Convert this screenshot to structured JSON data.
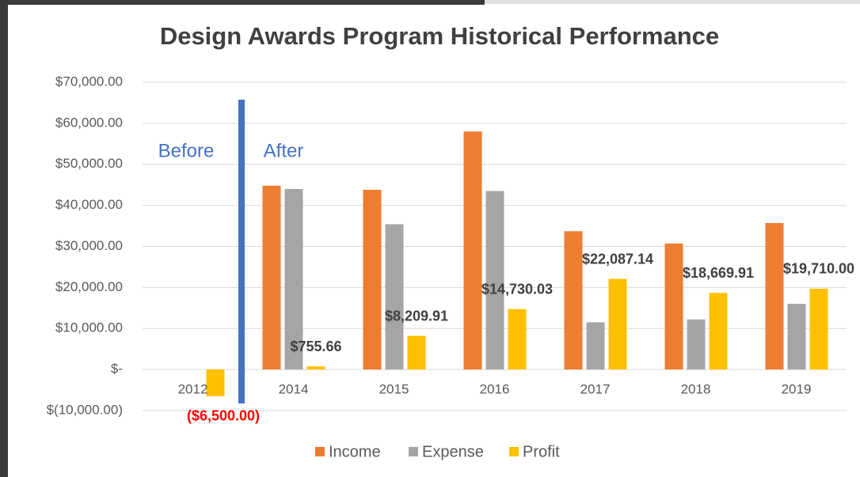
{
  "chart_data": {
    "type": "bar",
    "title": "Design Awards Program Historical Performance",
    "annotations": [
      "Before",
      "After"
    ],
    "categories": [
      "2012",
      "2014",
      "2015",
      "2016",
      "2017",
      "2018",
      "2019"
    ],
    "series": [
      {
        "name": "Income",
        "color": "#ED7D31",
        "values": [
          null,
          44800,
          43800,
          58000,
          33700,
          30700,
          35700
        ]
      },
      {
        "name": "Expense",
        "color": "#A5A5A5",
        "values": [
          null,
          44000,
          35400,
          43500,
          11500,
          12200,
          16000
        ]
      },
      {
        "name": "Profit",
        "color": "#FFC000",
        "values": [
          -6500,
          755.66,
          8209.91,
          14730.03,
          22087.14,
          18669.91,
          19710.0
        ],
        "value_labels": [
          "($6,500.00)",
          "$755.66",
          "$8,209.91",
          "$14,730.03",
          "$22,087.14",
          "$18,669.91",
          "$19,710.00"
        ]
      }
    ],
    "ylim": [
      -10000,
      70000
    ],
    "yticks": [
      {
        "value": -10000,
        "label": "$(10,000.00)"
      },
      {
        "value": 0,
        "label": "$-"
      },
      {
        "value": 10000,
        "label": "$10,000.00"
      },
      {
        "value": 20000,
        "label": "$20,000.00"
      },
      {
        "value": 30000,
        "label": "$30,000.00"
      },
      {
        "value": 40000,
        "label": "$40,000.00"
      },
      {
        "value": 50000,
        "label": "$50,000.00"
      },
      {
        "value": 60000,
        "label": "$60,000.00"
      },
      {
        "value": 70000,
        "label": "$70,000.00"
      }
    ],
    "grid": true,
    "legend": "bottom"
  }
}
